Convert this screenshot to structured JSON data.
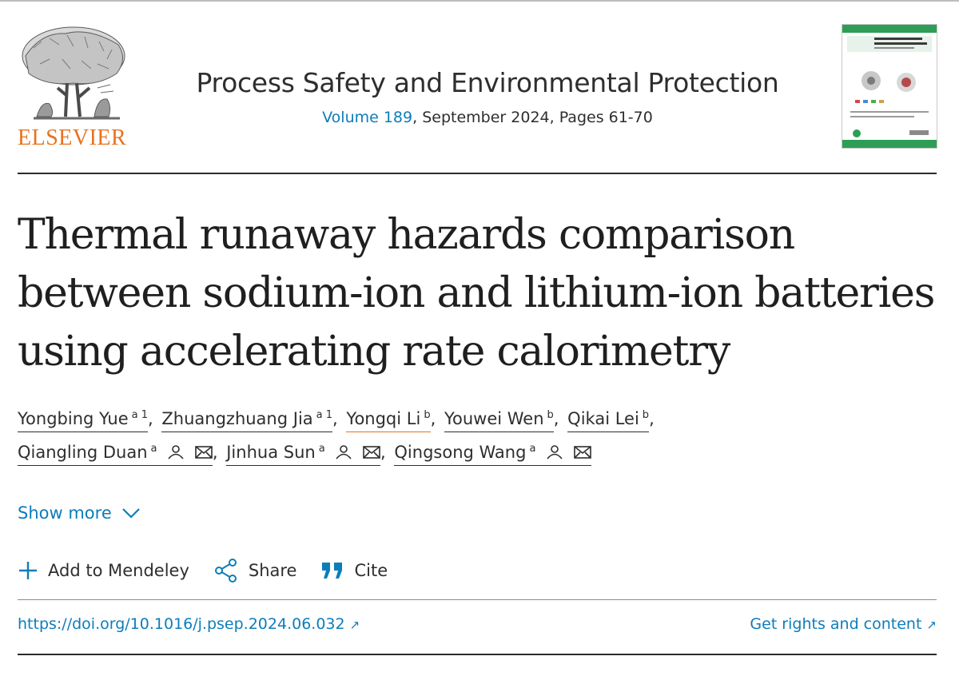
{
  "publisher": {
    "logo_wordmark": "ELSEVIER"
  },
  "journal": {
    "title": "Process Safety and Environmental Protection",
    "volume_link": "Volume 189",
    "issue_rest": ", September 2024, Pages 61-70"
  },
  "article": {
    "title": "Thermal runaway hazards comparison between sodium-ion and lithium-ion batteries using accelerating rate calorimetry"
  },
  "authors": [
    {
      "name": "Yongbing Yue",
      "sup": "a 1"
    },
    {
      "name": "Zhuangzhuang Jia",
      "sup": "a 1"
    },
    {
      "name": "Yongqi Li",
      "sup": "b"
    },
    {
      "name": "Youwei Wen",
      "sup": "b"
    },
    {
      "name": "Qikai Lei",
      "sup": "b"
    },
    {
      "name": "Qiangling Duan",
      "sup": "a"
    },
    {
      "name": "Jinhua Sun",
      "sup": "a"
    },
    {
      "name": "Qingsong Wang",
      "sup": "a"
    }
  ],
  "separators": {
    "comma": ","
  },
  "show_more": {
    "label": "Show more",
    "icon": "chevron-down-icon"
  },
  "actions": {
    "mendeley": {
      "label": "Add to Mendeley",
      "icon": "plus-icon"
    },
    "share": {
      "label": "Share",
      "icon": "share-icon"
    },
    "cite": {
      "label": "Cite",
      "icon": "quote-icon"
    }
  },
  "links": {
    "doi": "https://doi.org/10.1016/j.psep.2024.06.032",
    "rights": "Get rights and content",
    "external_icon": "↗"
  },
  "colors": {
    "link_blue": "#0c7dbb",
    "elsevier_orange": "#e9711c",
    "cover_green": "#2e9e57"
  }
}
